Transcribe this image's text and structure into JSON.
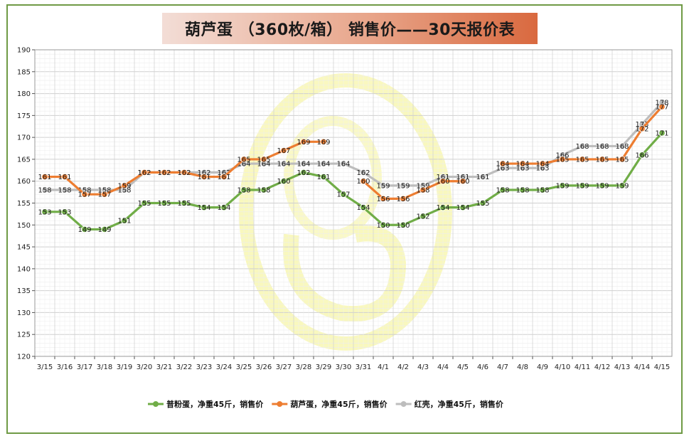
{
  "title": "葫芦蛋 （360枚/箱） 销售价——30天报价表",
  "chart_data": {
    "type": "line",
    "categories": [
      "3/15",
      "3/16",
      "3/17",
      "3/18",
      "3/19",
      "3/20",
      "3/21",
      "3/22",
      "3/23",
      "3/24",
      "3/25",
      "3/26",
      "3/27",
      "3/28",
      "3/29",
      "3/30",
      "3/31",
      "4/1",
      "4/2",
      "4/3",
      "4/4",
      "4/5",
      "4/6",
      "4/7",
      "4/8",
      "4/9",
      "4/10",
      "4/11",
      "4/12",
      "4/13",
      "4/14",
      "4/15"
    ],
    "ylim": [
      120,
      190
    ],
    "ystep": 5,
    "grid": true,
    "legend_position": "bottom",
    "series": [
      {
        "name": "红壳，净重45斤，销售价",
        "color": "#bdbdbd",
        "values": [
          158,
          158,
          158,
          158,
          158,
          162,
          162,
          162,
          162,
          162,
          164,
          164,
          164,
          164,
          164,
          164,
          162,
          159,
          159,
          159,
          161,
          161,
          161,
          163,
          163,
          163,
          166,
          168,
          168,
          168,
          173,
          178
        ]
      },
      {
        "name": "葫芦蛋，净重45斤，销售价",
        "color": "#ed7d31",
        "values": [
          161,
          161,
          157,
          157,
          159,
          162,
          162,
          162,
          161,
          161,
          165,
          165,
          167,
          169,
          169,
          null,
          160,
          156,
          156,
          158,
          160,
          160,
          null,
          164,
          164,
          164,
          165,
          165,
          165,
          165,
          172,
          177
        ]
      },
      {
        "name": "普粉蛋，净重45斤，销售价",
        "color": "#70ad47",
        "values": [
          153,
          153,
          149,
          149,
          151,
          155,
          155,
          155,
          154,
          154,
          158,
          158,
          160,
          162,
          161,
          157,
          154,
          150,
          150,
          152,
          154,
          154,
          155,
          158,
          158,
          158,
          159,
          159,
          159,
          159,
          166,
          171
        ]
      }
    ],
    "legend_order": [
      2,
      1,
      0
    ]
  }
}
